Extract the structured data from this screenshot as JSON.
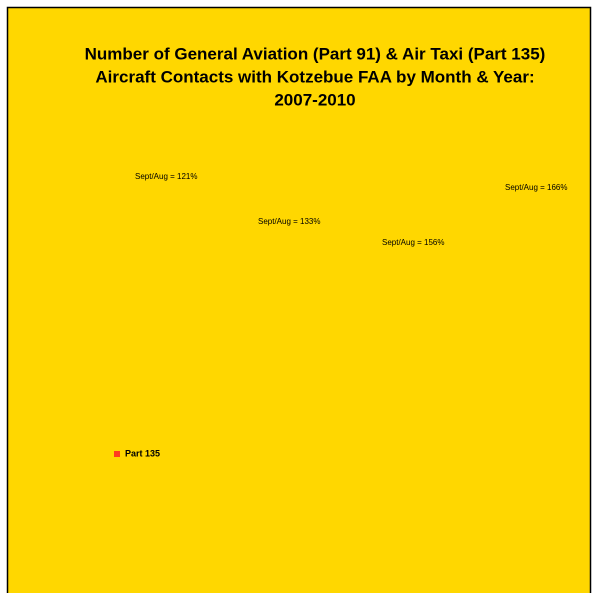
{
  "chart_data": {
    "type": "bar",
    "title": [
      "Number of General Aviation (Part 91) & Air Taxi (Part 135)",
      "Aircraft Contacts with Kotzebue FAA by Month & Year:",
      "2007-2010"
    ],
    "annotations": [
      "Sept/Aug = 121%",
      "Sept/Aug = 133%",
      "Sept/Aug = 156%",
      "Sept/Aug = 166%"
    ],
    "series": [
      {
        "name": "Part 135",
        "color": "#ff3b1f"
      }
    ],
    "background": "#ffd700"
  }
}
